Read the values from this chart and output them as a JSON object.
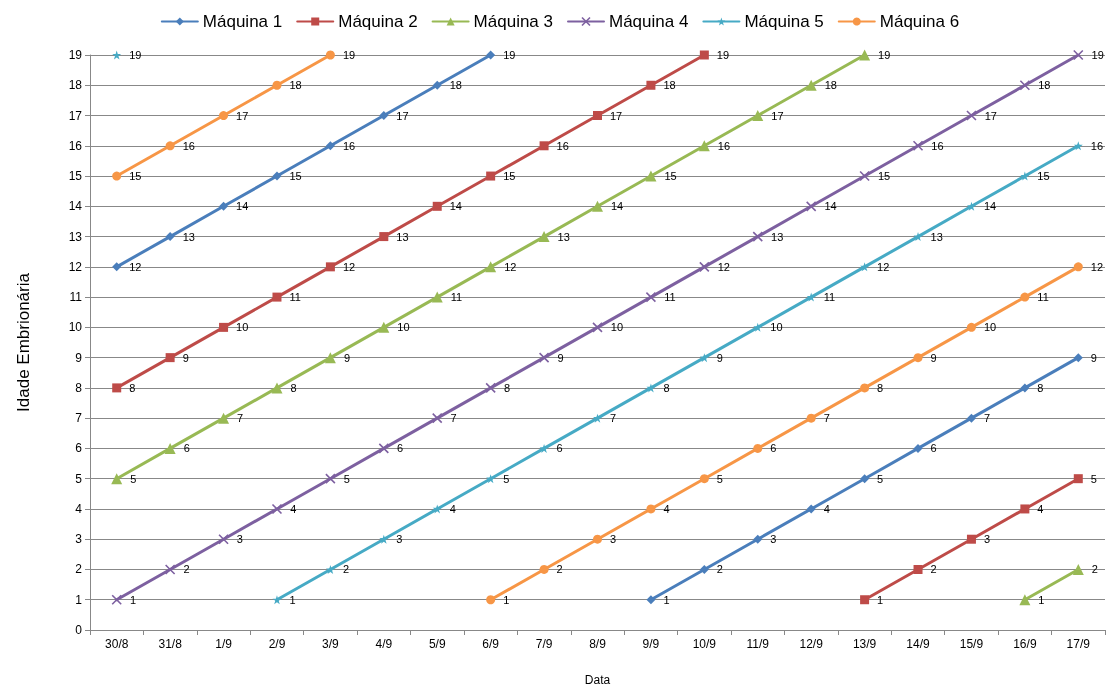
{
  "chart_data": {
    "type": "line",
    "xlabel": "Data",
    "ylabel": "Idade Embrionária",
    "categories": [
      "30/8",
      "31/8",
      "1/9",
      "2/9",
      "3/9",
      "4/9",
      "5/9",
      "6/9",
      "7/9",
      "8/9",
      "9/9",
      "10/9",
      "11/9",
      "12/9",
      "13/9",
      "14/9",
      "15/9",
      "16/9",
      "17/9"
    ],
    "series": [
      {
        "name": "Máquina 1",
        "color": "#4a7ebb",
        "marker": "diamond",
        "values": [
          12,
          13,
          14,
          15,
          16,
          17,
          18,
          19,
          null,
          null,
          1,
          2,
          3,
          4,
          5,
          6,
          7,
          8,
          9
        ]
      },
      {
        "name": "Máquina 2",
        "color": "#be4b48",
        "marker": "square",
        "values": [
          8,
          9,
          10,
          11,
          12,
          13,
          14,
          15,
          16,
          17,
          18,
          19,
          null,
          null,
          1,
          2,
          3,
          4,
          5
        ]
      },
      {
        "name": "Máquina 3",
        "color": "#98b954",
        "marker": "triangle",
        "values": [
          5,
          6,
          7,
          8,
          9,
          10,
          11,
          12,
          13,
          14,
          15,
          16,
          17,
          18,
          19,
          null,
          null,
          1,
          2
        ]
      },
      {
        "name": "Máquina 4",
        "color": "#7d60a0",
        "marker": "cross",
        "values": [
          1,
          2,
          3,
          4,
          5,
          6,
          7,
          8,
          9,
          10,
          11,
          12,
          13,
          14,
          15,
          16,
          17,
          18,
          19
        ]
      },
      {
        "name": "Máquina 5",
        "color": "#46aac5",
        "marker": "star",
        "values": [
          19,
          null,
          null,
          1,
          2,
          3,
          4,
          5,
          6,
          7,
          8,
          9,
          10,
          11,
          12,
          13,
          14,
          15,
          16
        ]
      },
      {
        "name": "Máquina 6",
        "color": "#f79646",
        "marker": "circle",
        "values": [
          15,
          16,
          17,
          18,
          19,
          null,
          null,
          1,
          2,
          3,
          4,
          5,
          6,
          7,
          8,
          9,
          10,
          11,
          12
        ]
      }
    ],
    "ylim": [
      0,
      19
    ],
    "yticks": [
      0,
      1,
      2,
      3,
      4,
      5,
      6,
      7,
      8,
      9,
      10,
      11,
      12,
      13,
      14,
      15,
      16,
      17,
      18,
      19
    ],
    "grid": "y",
    "legend": "top",
    "data_labels": true,
    "line_style": "solid"
  }
}
